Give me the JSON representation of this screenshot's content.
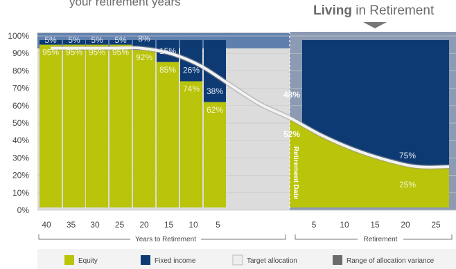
{
  "header": {
    "cut_text": "your retirement years",
    "living_bold": "Living",
    "living_rest": " in Retirement"
  },
  "colors": {
    "equity": "#b9c40a",
    "fixed_income": "#0d3a73",
    "target_allocation": "#eeeeee",
    "range_of_variance": "#6b6b6b",
    "range_band": "#5f7fae"
  },
  "chart_data": {
    "type": "bar",
    "y_ticks": [
      "100%",
      "90%",
      "80%",
      "70%",
      "60%",
      "50%",
      "40%",
      "30%",
      "20%",
      "10%",
      "0%"
    ],
    "ylim": [
      0,
      100
    ],
    "years_to_retirement": {
      "label": "Years to Retirement",
      "categories": [
        "40",
        "35",
        "30",
        "25",
        "20",
        "15",
        "10",
        "5"
      ]
    },
    "retirement": {
      "label": "Retirement",
      "categories": [
        "5",
        "10",
        "15",
        "20",
        "25"
      ]
    },
    "series": [
      {
        "name": "Equity",
        "values": [
          95,
          95,
          95,
          95,
          92,
          85,
          74,
          62
        ]
      },
      {
        "name": "Fixed income",
        "values": [
          5,
          5,
          5,
          5,
          8,
          15,
          26,
          38
        ]
      }
    ],
    "retirement_date": {
      "label": "Retirement Date",
      "equity": 52,
      "fixed_income": 48
    },
    "in_retirement": {
      "equity": 25,
      "fixed_income": 75
    },
    "glide_path": [
      {
        "x": 40,
        "y": 93
      },
      {
        "x": 35,
        "y": 93
      },
      {
        "x": 30,
        "y": 93
      },
      {
        "x": 25,
        "y": 93
      },
      {
        "x": 20,
        "y": 90
      },
      {
        "x": 15,
        "y": 83
      },
      {
        "x": 10,
        "y": 72
      },
      {
        "x": 5,
        "y": 61
      },
      {
        "x": 0,
        "y": 53
      },
      {
        "x": -5,
        "y": 43
      },
      {
        "x": -10,
        "y": 35
      },
      {
        "x": -15,
        "y": 29
      },
      {
        "x": -20,
        "y": 25
      },
      {
        "x": -25,
        "y": 25
      }
    ],
    "legend": [
      {
        "label": "Equity",
        "color": "#b9c40a"
      },
      {
        "label": "Fixed income",
        "color": "#0d3a73"
      },
      {
        "label": "Target allocation",
        "color": "#eeeeee"
      },
      {
        "label": "Range of allocation variance",
        "color": "#6b6b6b"
      }
    ]
  }
}
